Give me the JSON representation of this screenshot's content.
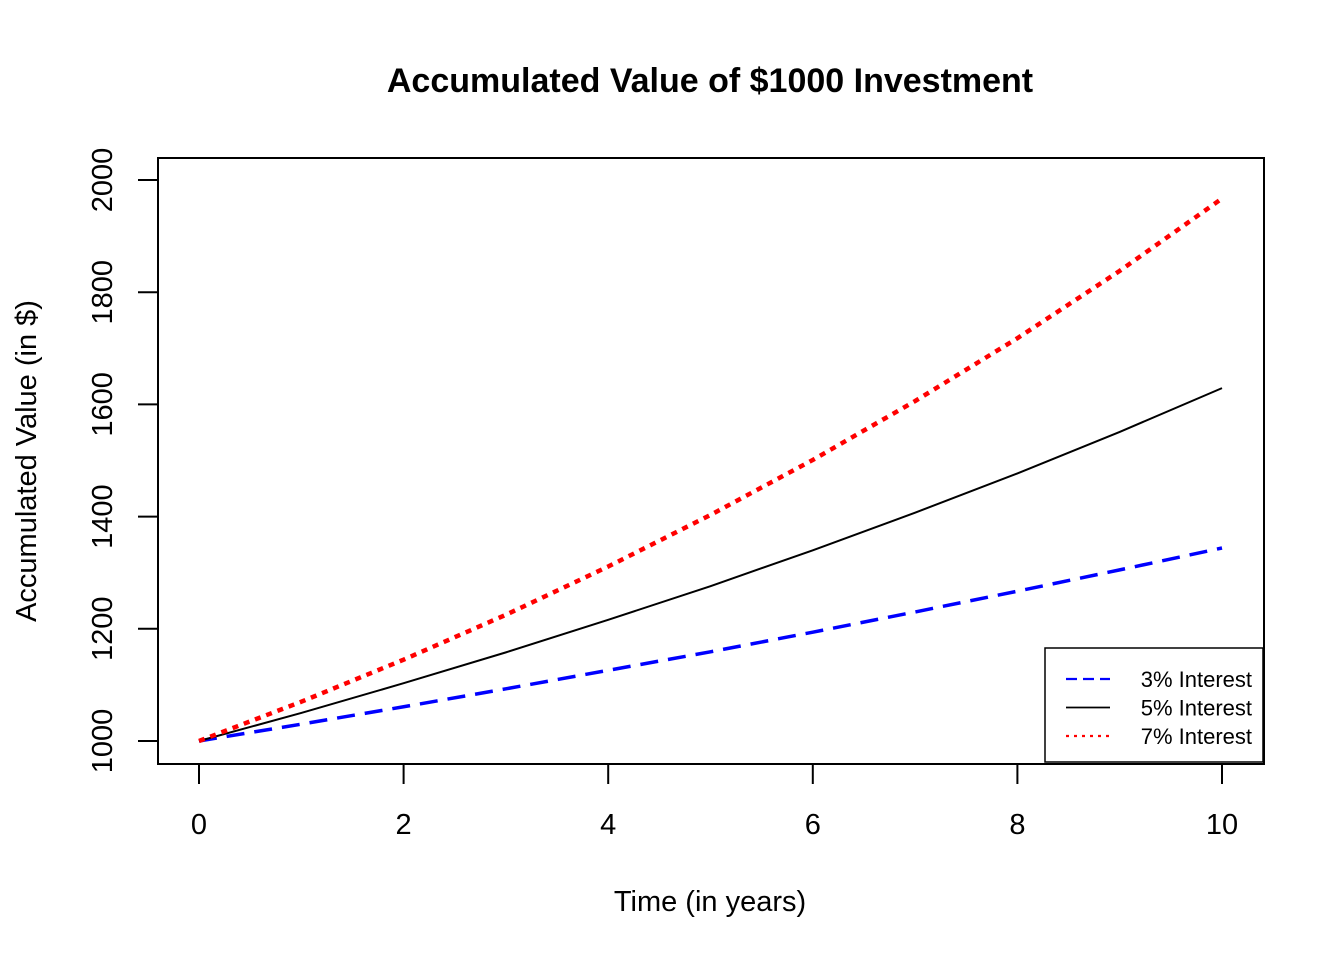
{
  "chart_data": {
    "type": "line",
    "title": "Accumulated Value of $1000 Investment",
    "xlabel": "Time (in years)",
    "ylabel": "Accumulated Value (in $)",
    "xlim": [
      0,
      10
    ],
    "ylim": [
      1000,
      2000
    ],
    "x_ticks": [
      0,
      2,
      4,
      6,
      8,
      10
    ],
    "y_ticks": [
      1000,
      1200,
      1400,
      1600,
      1800,
      2000
    ],
    "grid": false,
    "legend_position": "bottom-right",
    "x": [
      0,
      1,
      2,
      3,
      4,
      5,
      6,
      7,
      8,
      9,
      10
    ],
    "series": [
      {
        "name": "3% Interest",
        "color": "#0000ff",
        "style": "dashed",
        "values": [
          1000,
          1030,
          1061,
          1093,
          1126,
          1159,
          1194,
          1230,
          1267,
          1305,
          1344
        ]
      },
      {
        "name": "5% Interest",
        "color": "#000000",
        "style": "solid",
        "values": [
          1000,
          1050,
          1103,
          1158,
          1216,
          1276,
          1340,
          1407,
          1477,
          1551,
          1629
        ]
      },
      {
        "name": "7% Interest",
        "color": "#ff0000",
        "style": "dotted",
        "values": [
          1000,
          1070,
          1145,
          1225,
          1311,
          1403,
          1501,
          1606,
          1718,
          1838,
          1967
        ]
      }
    ]
  }
}
